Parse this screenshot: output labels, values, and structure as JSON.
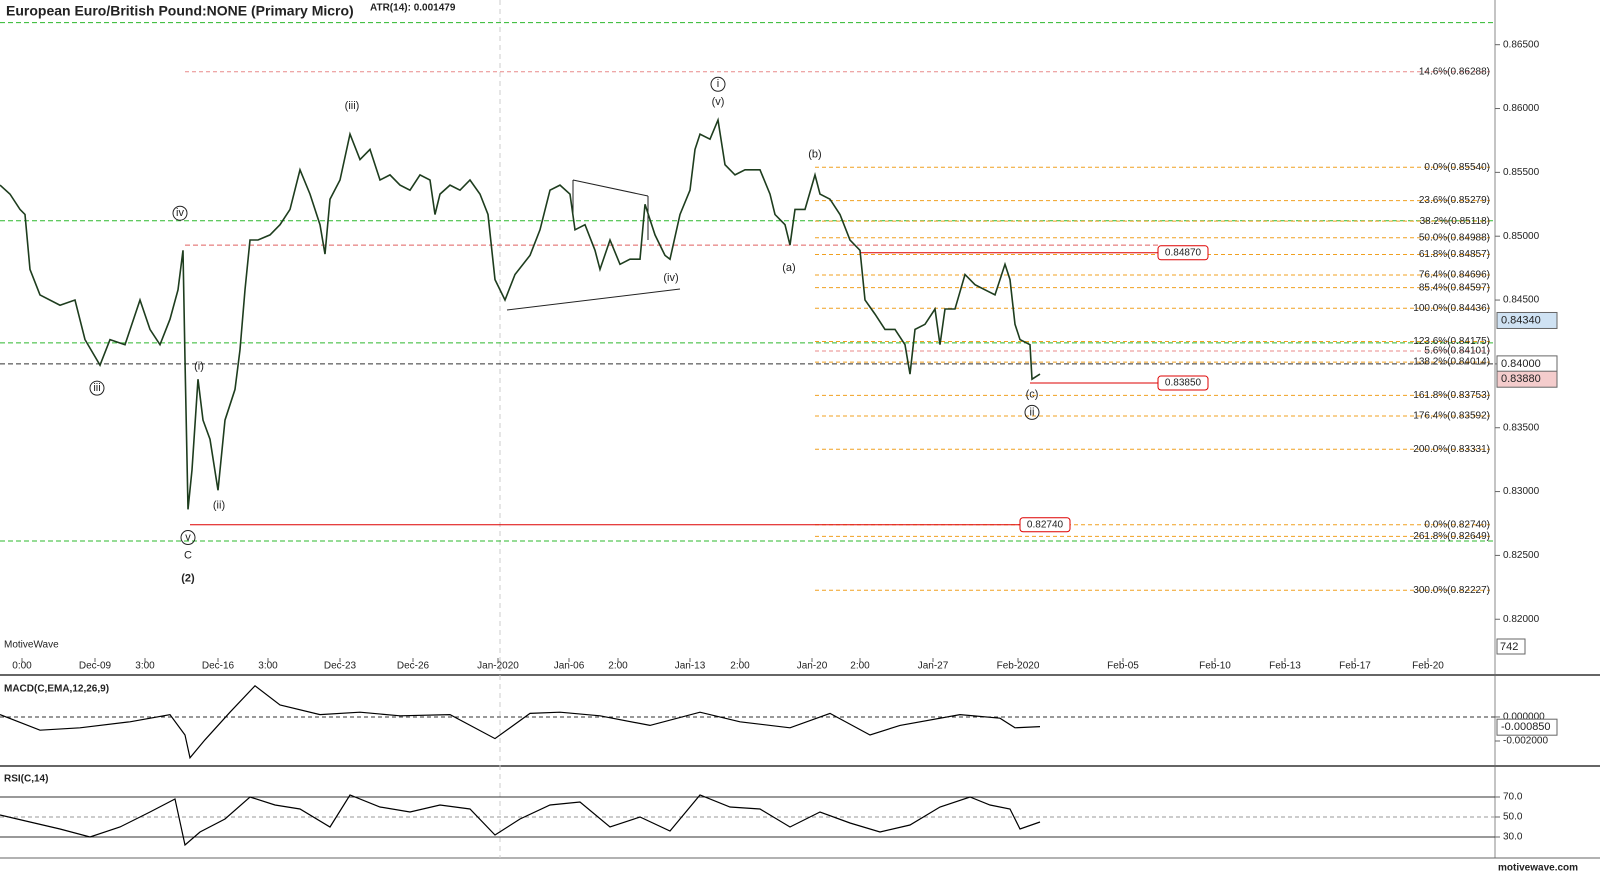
{
  "chart_data": [
    {
      "type": "line",
      "title": "European Euro/British Pound:NONE (Primary Micro)",
      "subtitle": "ATR(14): 0.001479",
      "watermark": "MotiveWave",
      "footer": "motivewave.com",
      "xlim": [
        0,
        299
      ],
      "xticks": [
        {
          "value": 4.4,
          "label": "0:00"
        },
        {
          "value": 19,
          "label": "Dec-09"
        },
        {
          "value": 29,
          "label": "3:00"
        },
        {
          "value": 43.6,
          "label": "Dec-16"
        },
        {
          "value": 53.6,
          "label": "3:00"
        },
        {
          "value": 68,
          "label": "Dec-23"
        },
        {
          "value": 82.6,
          "label": "Dec-26"
        },
        {
          "value": 99.6,
          "label": "Jan-2020"
        },
        {
          "value": 113.8,
          "label": "Jan-06"
        },
        {
          "value": 123.6,
          "label": "2:00"
        },
        {
          "value": 138,
          "label": "Jan-13"
        },
        {
          "value": 148,
          "label": "2:00"
        },
        {
          "value": 162.4,
          "label": "Jan-20"
        },
        {
          "value": 172,
          "label": "2:00"
        },
        {
          "value": 186.6,
          "label": "Jan-27"
        },
        {
          "value": 203.6,
          "label": "Feb-2020"
        },
        {
          "value": 224.6,
          "label": "Feb-05"
        },
        {
          "value": 243,
          "label": "Feb-10"
        },
        {
          "value": 257,
          "label": "Feb-13"
        },
        {
          "value": 271,
          "label": "Feb-17"
        },
        {
          "value": 285.6,
          "label": "Feb-20"
        }
      ],
      "ylim": [
        0.8172,
        0.8685
      ],
      "yticks": [
        {
          "value": 0.82,
          "label": "0.82000"
        },
        {
          "value": 0.825,
          "label": "0.82500"
        },
        {
          "value": 0.83,
          "label": "0.83000"
        },
        {
          "value": 0.835,
          "label": "0.83500"
        },
        {
          "value": 0.84,
          "label": "0.84000"
        },
        {
          "value": 0.845,
          "label": "0.84500"
        },
        {
          "value": 0.85,
          "label": "0.85000"
        },
        {
          "value": 0.855,
          "label": "0.85500"
        },
        {
          "value": 0.86,
          "label": "0.86000"
        },
        {
          "value": 0.865,
          "label": "0.86500"
        }
      ],
      "series": [
        {
          "color": "#1e3d1e",
          "x": [
            0,
            2,
            4,
            5,
            6,
            8,
            12,
            15,
            17,
            20,
            22,
            25,
            28,
            30,
            32,
            34,
            35.6,
            36.6,
            37,
            37.6,
            38.4,
            39.6,
            40.6,
            42,
            43.6,
            45,
            47,
            48,
            49,
            50,
            51.6,
            54,
            56,
            58,
            60,
            62,
            64,
            65,
            66,
            68,
            70,
            72,
            74,
            76,
            78,
            80,
            82,
            84,
            86,
            87,
            88,
            90,
            92,
            94,
            96,
            97.6,
            99,
            101,
            103,
            106,
            108,
            110,
            112,
            114,
            115,
            117,
            119,
            120,
            122,
            124,
            126,
            128,
            129,
            131,
            133,
            134,
            136,
            138,
            139,
            140,
            142,
            143.6,
            145,
            147,
            149,
            152,
            154,
            155,
            157,
            158,
            159,
            161,
            163,
            164,
            166,
            168,
            170,
            172,
            173,
            175,
            177,
            179,
            181,
            182,
            183,
            185,
            187,
            188,
            189,
            191,
            193,
            195,
            197,
            199,
            201,
            202,
            203,
            204,
            206,
            206.4,
            208
          ],
          "values": [
            0.854,
            0.8533,
            0.8521,
            0.8517,
            0.8474,
            0.8454,
            0.8446,
            0.845,
            0.8419,
            0.8399,
            0.8419,
            0.8415,
            0.845,
            0.8427,
            0.8415,
            0.8435,
            0.8458,
            0.8489,
            0.8403,
            0.8286,
            0.8317,
            0.8388,
            0.8356,
            0.8341,
            0.8301,
            0.8356,
            0.838,
            0.8411,
            0.8458,
            0.8497,
            0.8497,
            0.8501,
            0.8509,
            0.8521,
            0.8552,
            0.8533,
            0.8509,
            0.8486,
            0.8529,
            0.8544,
            0.858,
            0.856,
            0.8568,
            0.8544,
            0.8548,
            0.854,
            0.8536,
            0.8548,
            0.8544,
            0.8517,
            0.8533,
            0.854,
            0.8536,
            0.8544,
            0.8533,
            0.8517,
            0.8466,
            0.845,
            0.847,
            0.8485,
            0.8505,
            0.8536,
            0.854,
            0.8533,
            0.8505,
            0.8509,
            0.8489,
            0.8474,
            0.8497,
            0.8478,
            0.8482,
            0.8482,
            0.8525,
            0.8501,
            0.8485,
            0.8482,
            0.8517,
            0.8536,
            0.8568,
            0.858,
            0.8576,
            0.8591,
            0.8556,
            0.8548,
            0.8552,
            0.8552,
            0.8533,
            0.8517,
            0.8509,
            0.8493,
            0.8521,
            0.8521,
            0.8548,
            0.8533,
            0.8529,
            0.8517,
            0.8497,
            0.8489,
            0.845,
            0.8439,
            0.8427,
            0.8427,
            0.8415,
            0.8392,
            0.8427,
            0.8431,
            0.8443,
            0.8415,
            0.8443,
            0.8443,
            0.847,
            0.8462,
            0.8458,
            0.8454,
            0.8478,
            0.8466,
            0.8431,
            0.8419,
            0.8415,
            0.8388,
            0.8392
          ]
        }
      ],
      "fib_levels": [
        {
          "label": "14.6%(0.86288)",
          "value": 0.86288,
          "color": "#e88a8a"
        },
        {
          "label": "0.0%(0.85540)",
          "value": 0.8554,
          "color": "#f0a020"
        },
        {
          "label": "23.6%(0.85279)",
          "value": 0.85279,
          "color": "#f0a020"
        },
        {
          "label": "38.2%(0.85118)",
          "value": 0.85118,
          "color": "#f0a020"
        },
        {
          "label": "50.0%(0.84988)",
          "value": 0.84988,
          "color": "#f0a020"
        },
        {
          "label": "61.8%(0.84857)",
          "value": 0.84857,
          "color": "#f0a020"
        },
        {
          "label": "76.4%(0.84696)",
          "value": 0.84696,
          "color": "#f0a020"
        },
        {
          "label": "85.4%(0.84597)",
          "value": 0.84597,
          "color": "#f0a020"
        },
        {
          "label": "100.0%(0.84436)",
          "value": 0.84436,
          "color": "#f0a020"
        },
        {
          "label": "123.6%(0.84175)",
          "value": 0.84175,
          "color": "#f0a020"
        },
        {
          "label": "5.6%(0.84101)",
          "value": 0.84101,
          "color": "#e88a8a"
        },
        {
          "label": "138.2%(0.84014)",
          "value": 0.84014,
          "color": "#f0a020"
        },
        {
          "label": "161.8%(0.83753)",
          "value": 0.83753,
          "color": "#f0a020"
        },
        {
          "label": "176.4%(0.83592)",
          "value": 0.83592,
          "color": "#f0a020"
        },
        {
          "label": "200.0%(0.83331)",
          "value": 0.83331,
          "color": "#f0a020"
        },
        {
          "label": "0.0%(0.82740)",
          "value": 0.8274,
          "color": "#f0a020"
        },
        {
          "label": "261.8%(0.82649)",
          "value": 0.82649,
          "color": "#f0a020"
        },
        {
          "label": "300.0%(0.82227)",
          "value": 0.82227,
          "color": "#f0a020"
        }
      ],
      "guide_lines": [
        {
          "value": 0.86673,
          "color": "#2db82d"
        },
        {
          "value": 0.85121,
          "color": "#2db82d"
        },
        {
          "value": 0.84165,
          "color": "#2db82d"
        },
        {
          "value": 0.82613,
          "color": "#2db82d"
        },
        {
          "value": 0.84,
          "color": "#333333"
        },
        {
          "value": 0.8493,
          "color": "#e06060"
        }
      ],
      "price_tags": [
        {
          "label": "0.84870",
          "value": 0.8487
        },
        {
          "label": "0.83850",
          "value": 0.8385
        },
        {
          "label": "0.82740",
          "value": 0.8274
        }
      ],
      "axis_tags": [
        {
          "label": "0.84340",
          "value": 0.8434,
          "color": "#cfe2f3"
        },
        {
          "label": "0.84000",
          "value": 0.84,
          "color": "#ffffff"
        },
        {
          "label": "0.83880",
          "value": 0.8388,
          "color": "#f4cccc"
        }
      ],
      "volume_tag": "742",
      "wave_labels": [
        {
          "text": "iii",
          "circled": true,
          "x": 19.4,
          "y": 0.8381
        },
        {
          "text": "iv",
          "circled": true,
          "x": 36,
          "y": 0.8518
        },
        {
          "text": "(i)",
          "circled": false,
          "x": 39.8,
          "y": 0.8398
        },
        {
          "text": "(ii)",
          "circled": false,
          "x": 43.8,
          "y": 0.8289
        },
        {
          "text": "v",
          "circled": true,
          "x": 37.6,
          "y": 0.8264
        },
        {
          "text": "C",
          "circled": false,
          "x": 37.6,
          "y": 0.825
        },
        {
          "text": "(2)",
          "circled": false,
          "x": 37.6,
          "y": 0.8232
        },
        {
          "text": "(iii)",
          "circled": false,
          "x": 70.4,
          "y": 0.8602
        },
        {
          "text": "i",
          "circled": true,
          "x": 143.6,
          "y": 0.8619
        },
        {
          "text": "(v)",
          "circled": false,
          "x": 143.6,
          "y": 0.8605
        },
        {
          "text": "(iv)",
          "circled": false,
          "x": 134.2,
          "y": 0.8467
        },
        {
          "text": "(b)",
          "circled": false,
          "x": 163,
          "y": 0.8564
        },
        {
          "text": "(a)",
          "circled": false,
          "x": 157.8,
          "y": 0.8475
        },
        {
          "text": "(c)",
          "circled": false,
          "x": 206.4,
          "y": 0.8376
        },
        {
          "text": "ii",
          "circled": true,
          "x": 206.4,
          "y": 0.8362
        }
      ]
    },
    {
      "type": "line",
      "title": "MACD(C,EMA,12,26,9)",
      "xlim": [
        0,
        299
      ],
      "ylim": [
        -0.00375,
        0.00308
      ],
      "yticks": [
        {
          "value": 0,
          "label": "0.000000"
        },
        {
          "value": -0.002,
          "label": "-0.002000"
        }
      ],
      "axis_tags": [
        {
          "label": "-0.000850",
          "value": -0.00085,
          "color": "#ffffff"
        }
      ],
      "series": [
        {
          "color": "#000000",
          "x": [
            0,
            8,
            16,
            26,
            34,
            37,
            38,
            41,
            46,
            51,
            56,
            64,
            72,
            80,
            90,
            99,
            106,
            112,
            120,
            130,
            140,
            148,
            158,
            166,
            174,
            180,
            192,
            200,
            203,
            208
          ],
          "values": [
            0.0002,
            -0.0011,
            -0.0009,
            -0.0004,
            0.0002,
            -0.0015,
            -0.0034,
            -0.0019,
            0.0004,
            0.0026,
            0.001,
            0.0002,
            0.0004,
            0.0001,
            0.0002,
            -0.0018,
            0.0003,
            0.0004,
            0.0001,
            -0.0007,
            0.0004,
            -0.0004,
            -0.0009,
            0.0003,
            -0.0015,
            -0.0007,
            0.0002,
            -0.0001,
            -0.0009,
            -0.0008
          ]
        }
      ]
    },
    {
      "type": "line",
      "title": "RSI(C,14)",
      "xlim": [
        0,
        299
      ],
      "ylim": [
        9,
        97
      ],
      "yticks": [
        {
          "value": 30,
          "label": "30.0"
        },
        {
          "value": 50,
          "label": "50.0"
        },
        {
          "value": 70,
          "label": "70.0"
        }
      ],
      "series": [
        {
          "color": "#000000",
          "x": [
            0,
            6,
            12,
            18,
            24,
            30,
            35,
            37,
            40,
            45,
            50,
            55,
            60,
            66,
            70,
            76,
            82,
            88,
            94,
            99,
            104,
            110,
            116,
            122,
            128,
            134,
            140,
            146,
            152,
            158,
            164,
            170,
            176,
            182,
            188,
            194,
            198,
            202,
            204,
            208
          ],
          "values": [
            52,
            45,
            38,
            30,
            40,
            55,
            68,
            22,
            35,
            48,
            70,
            62,
            58,
            40,
            72,
            60,
            55,
            62,
            58,
            32,
            48,
            62,
            65,
            40,
            50,
            36,
            72,
            60,
            58,
            40,
            55,
            44,
            35,
            42,
            60,
            70,
            62,
            58,
            38,
            45
          ]
        }
      ]
    }
  ]
}
